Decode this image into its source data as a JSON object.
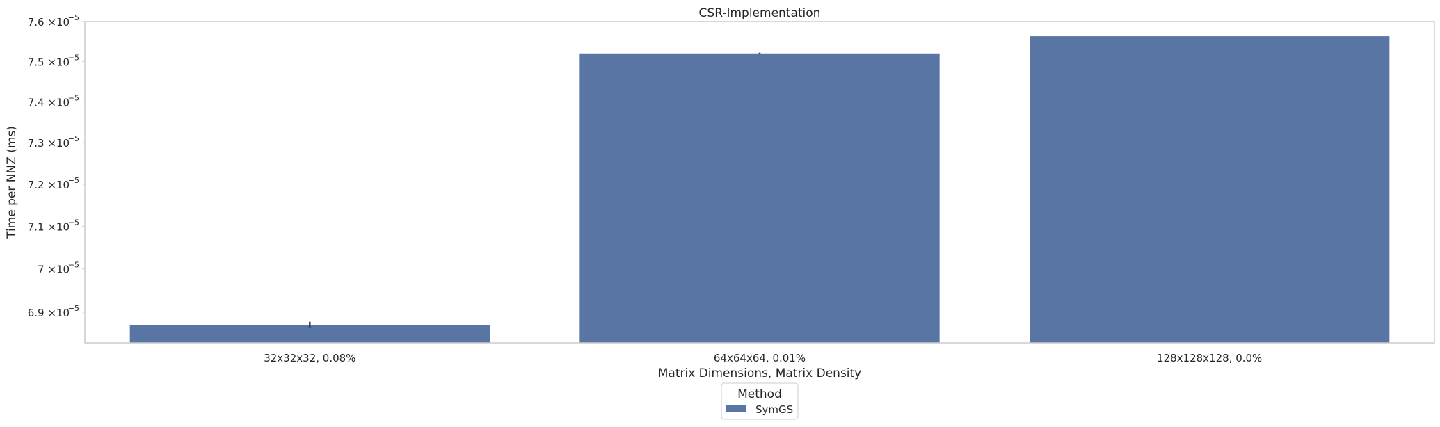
{
  "chart_data": {
    "type": "bar",
    "title": "CSR-Implementation",
    "xlabel": "Matrix Dimensions, Matrix Density",
    "ylabel": "Time per NNZ (ms)",
    "y_scale": "log",
    "ylim": [
      6.83e-05,
      7.6e-05
    ],
    "categories": [
      "32x32x32, 0.08%",
      "64x64x64, 0.01%",
      "128x128x128, 0.0%"
    ],
    "series": [
      {
        "name": "SymGS",
        "values": [
          6.87e-05,
          7.52e-05,
          7.563e-05
        ],
        "error": [
          [
            6.865e-05,
            6.878e-05
          ],
          [
            7.518e-05,
            7.522e-05
          ],
          null
        ],
        "color": "#5975a4"
      }
    ],
    "y_ticks": [
      {
        "value": 6.9e-05,
        "mantissa": "6.9",
        "exponent": "−5"
      },
      {
        "value": 7e-05,
        "mantissa": "7",
        "exponent": "−5"
      },
      {
        "value": 7.1e-05,
        "mantissa": "7.1",
        "exponent": "−5"
      },
      {
        "value": 7.2e-05,
        "mantissa": "7.2",
        "exponent": "−5"
      },
      {
        "value": 7.3e-05,
        "mantissa": "7.3",
        "exponent": "−5"
      },
      {
        "value": 7.4e-05,
        "mantissa": "7.4",
        "exponent": "−5"
      },
      {
        "value": 7.5e-05,
        "mantissa": "7.5",
        "exponent": "−5"
      },
      {
        "value": 7.6e-05,
        "mantissa": "7.6",
        "exponent": "−5"
      }
    ],
    "tick_multiplier": "×10",
    "grid": false,
    "legend": {
      "title": "Method",
      "placement": "bottom-center",
      "entries": [
        "SymGS"
      ]
    }
  }
}
